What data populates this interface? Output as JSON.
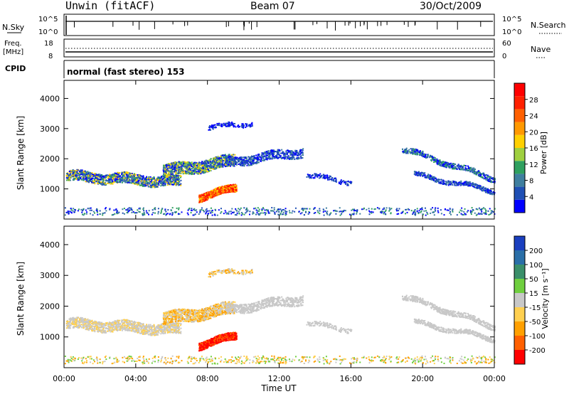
{
  "header": {
    "title": "Unwin (fitACF)",
    "beam": "Beam 07",
    "date": "30/Oct/2009"
  },
  "top_panels": {
    "nsky_label": "N.Sky",
    "nsky_ticks": [
      "10^5",
      "10^0"
    ],
    "nsearch_label": "N.Search",
    "nsearch_ticks": [
      "10^5",
      "10^0"
    ],
    "freq_label": "Freq.",
    "freq_unit": "[MHz]",
    "freq_ticks": [
      "18",
      "8"
    ],
    "nave_label": "Nave",
    "nave_ticks": [
      "60",
      "0"
    ],
    "cpid_label": "CPID",
    "cpid_value": "normal (fast stereo) 153"
  },
  "chart_data": [
    {
      "type": "heatmap",
      "name": "power",
      "ylabel": "Slant Range [km]",
      "yticks": [
        1000,
        2000,
        3000,
        4000
      ],
      "ylim": [
        0,
        4600
      ],
      "xticks": [
        "00:00",
        "04:00",
        "08:00",
        "12:00",
        "16:00",
        "20:00",
        "00:00"
      ],
      "xlim_hours": [
        0,
        24
      ],
      "colorbar": {
        "label": "Power [dB]",
        "ticks": [
          "4",
          "8",
          "12",
          "16",
          "20",
          "24",
          "28"
        ],
        "colors": [
          "#0000ff",
          "#1f4fb4",
          "#3f7f9f",
          "#2fa05f",
          "#9fd040",
          "#ffd000",
          "#ff9900",
          "#ff6000",
          "#ff2000",
          "#ff0000"
        ]
      }
    },
    {
      "type": "heatmap",
      "name": "velocity",
      "ylabel": "Slant Range [km]",
      "yticks": [
        1000,
        2000,
        3000,
        4000
      ],
      "ylim": [
        0,
        4600
      ],
      "xticks": [
        "00:00",
        "04:00",
        "08:00",
        "12:00",
        "16:00",
        "20:00",
        "00:00"
      ],
      "xlabel": "Time UT",
      "colorbar": {
        "label": "Velocity [m s⁻¹]",
        "ticks": [
          "200",
          "100",
          "50",
          "15",
          "-15",
          "-50",
          "-100",
          "-200"
        ],
        "colors": [
          "#1a3fbf",
          "#2a6fa8",
          "#3a8f6a",
          "#6fcf3f",
          "#c8c8c8",
          "#ffd050",
          "#ffa000",
          "#ff6000",
          "#ff0000"
        ]
      }
    }
  ],
  "colors": {
    "frame": "#000000",
    "ground_scatter": "#aaaaaa"
  }
}
